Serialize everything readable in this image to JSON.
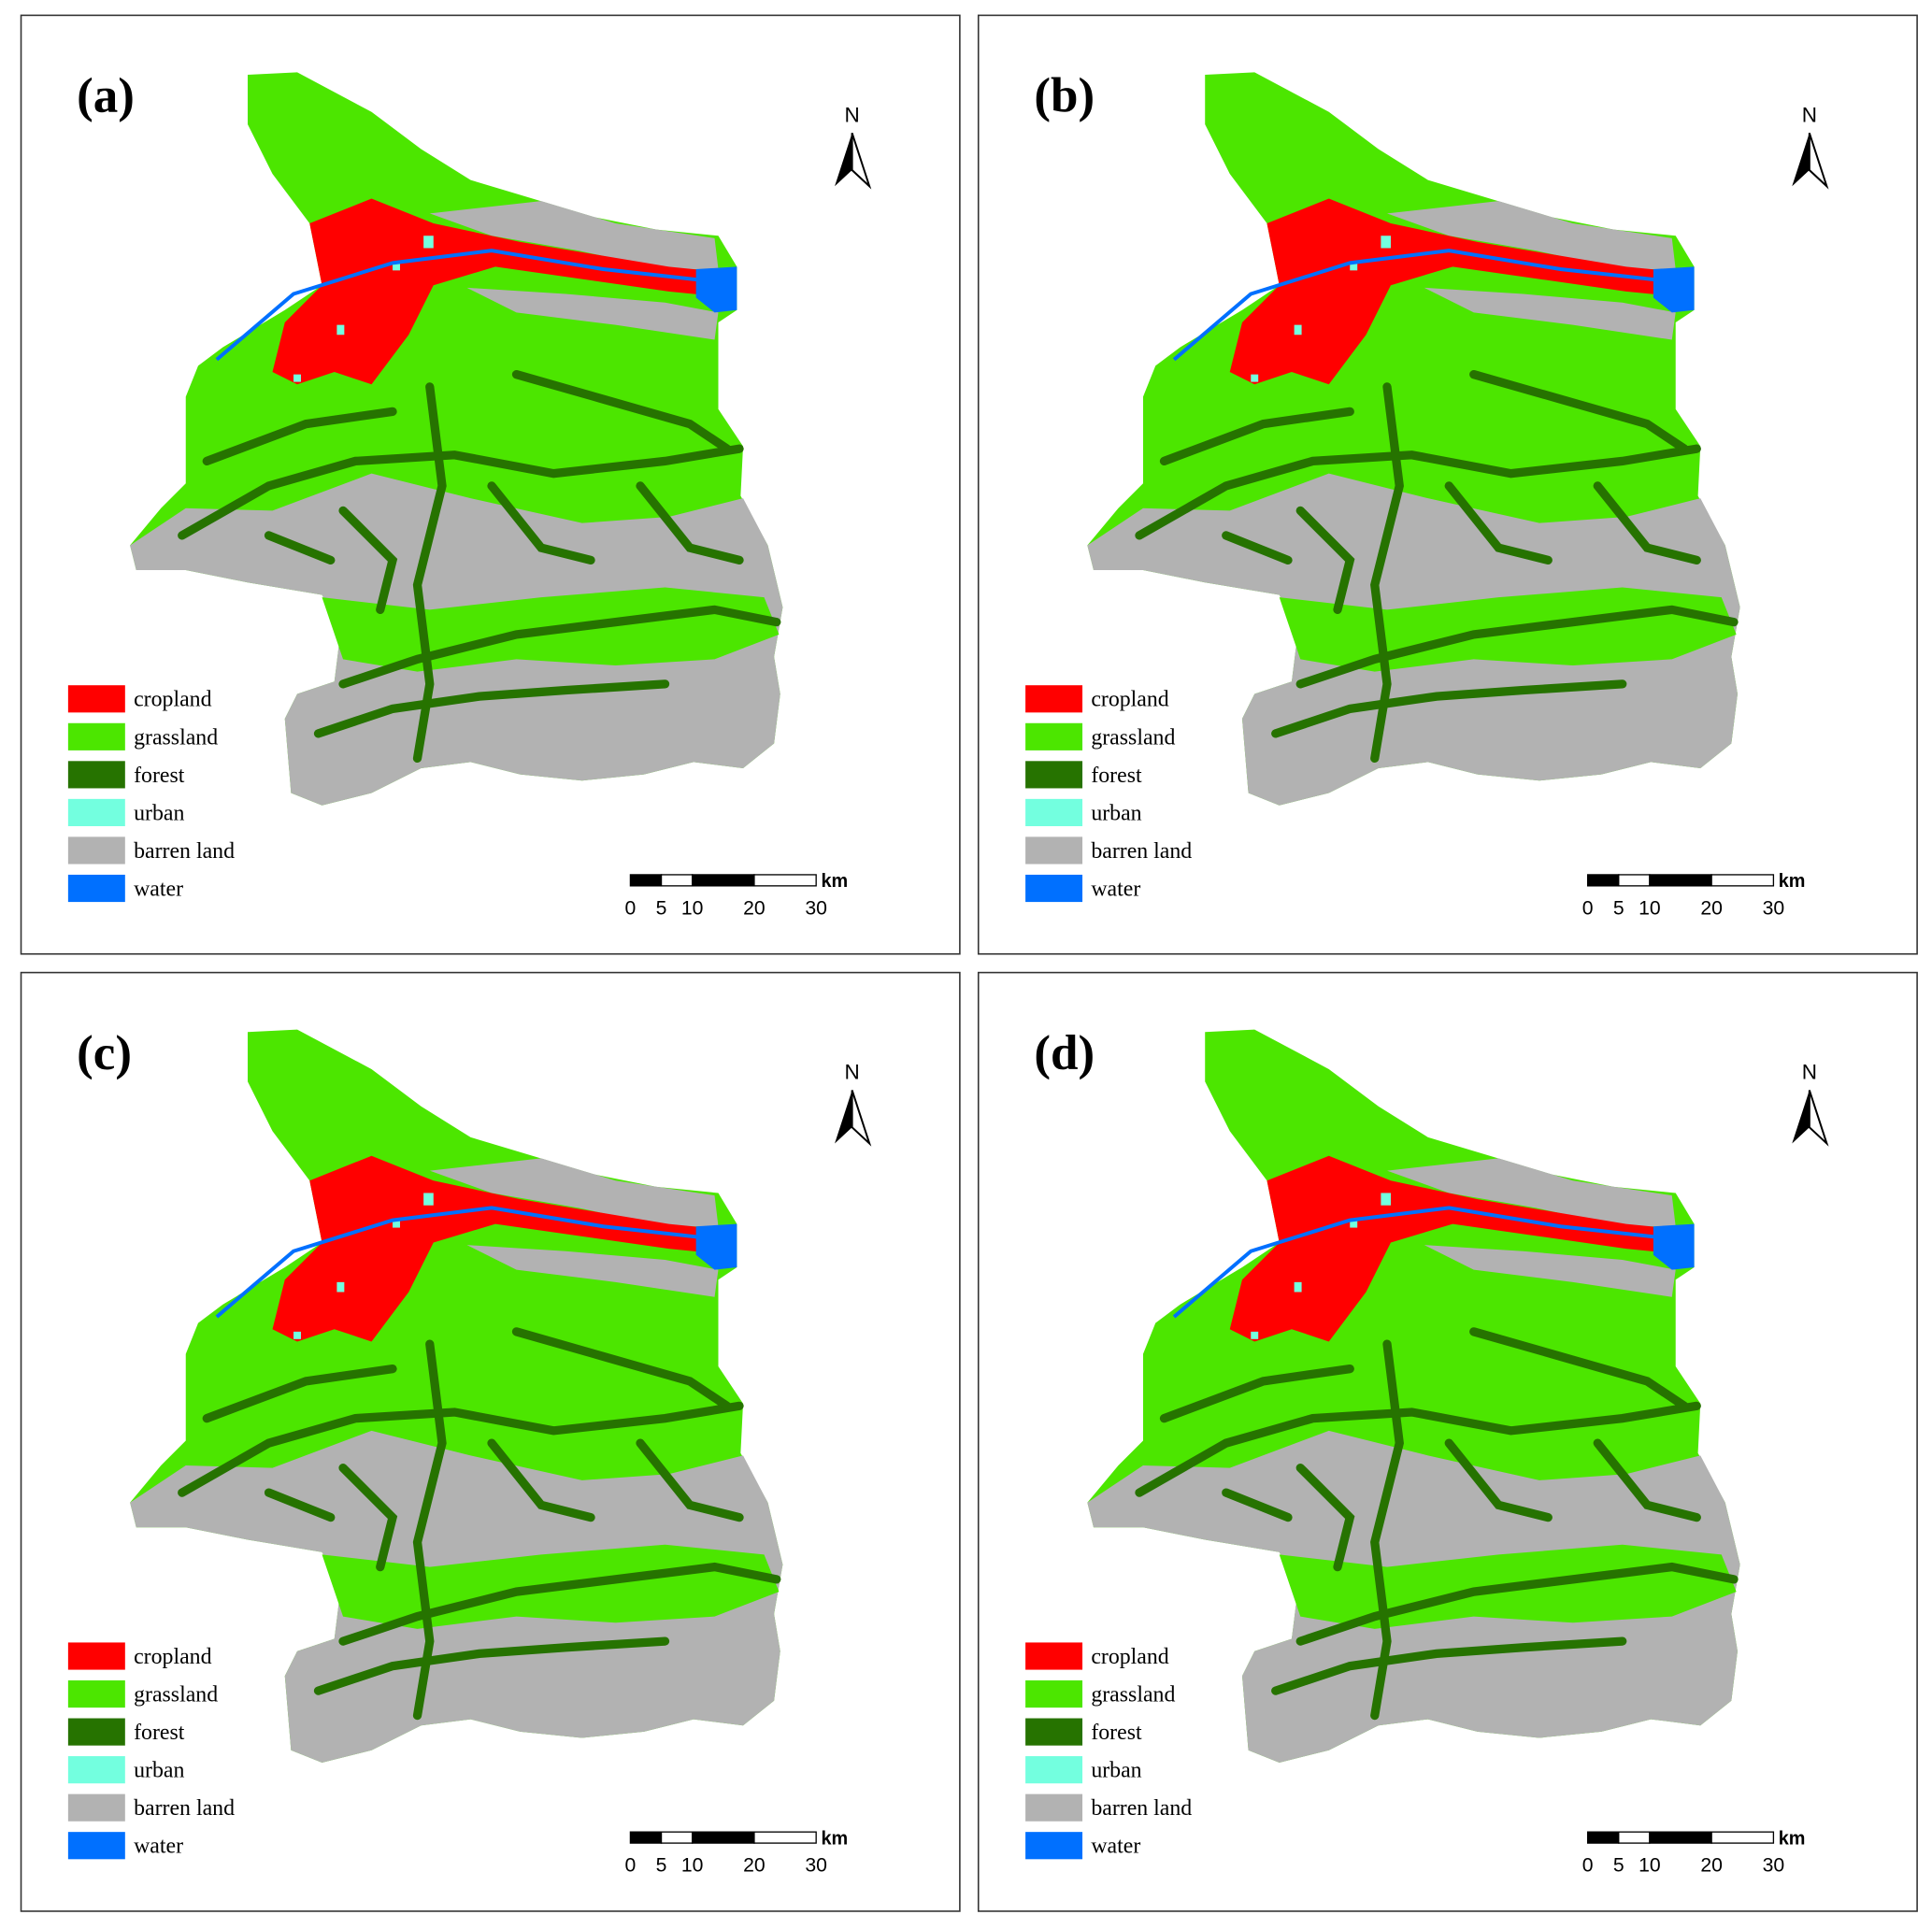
{
  "panels": [
    {
      "label": "(a)"
    },
    {
      "label": "(b)"
    },
    {
      "label": "(c)"
    },
    {
      "label": "(d)"
    }
  ],
  "north": "N",
  "legend": [
    {
      "label": "cropland",
      "color": "#ff0000"
    },
    {
      "label": "grassland",
      "color": "#4ce600"
    },
    {
      "label": "forest",
      "color": "#267300"
    },
    {
      "label": "urban",
      "color": "#73ffdf"
    },
    {
      "label": "barren land",
      "color": "#b2b2b2"
    },
    {
      "label": "water",
      "color": "#0070ff"
    }
  ],
  "scale_bar": {
    "ticks": [
      0,
      5,
      10,
      20,
      30
    ],
    "unit": "km"
  }
}
